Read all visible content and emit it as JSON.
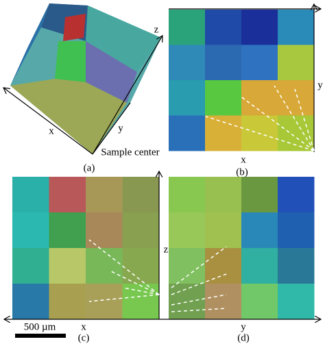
{
  "panels": [
    {
      "caption": "(a)",
      "axis_labels": [
        "x",
        "y",
        "z"
      ],
      "annotation": "Sample center"
    },
    {
      "caption": "(b)",
      "axis_labels": [
        "x",
        "y"
      ]
    },
    {
      "caption": "(c)",
      "axis_labels": [
        "x",
        "z"
      ],
      "scale_bar": "500 µm"
    },
    {
      "caption": "(d)",
      "axis_labels": [
        "y"
      ]
    }
  ]
}
